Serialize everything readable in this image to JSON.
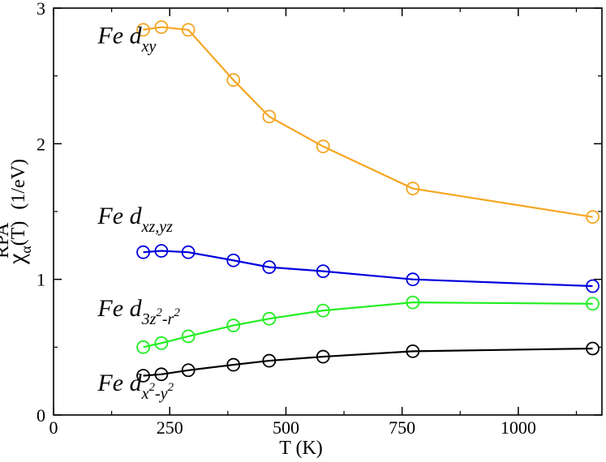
{
  "chart_data": {
    "type": "line",
    "title": "",
    "xlabel": "T (K)",
    "ylabel": {
      "symbol": "χ",
      "superscript": "RPA",
      "subscript": "α",
      "arg": "(T)",
      "unit": "(1/eV)"
    },
    "xlim": [
      0,
      1180
    ],
    "ylim": [
      0,
      3
    ],
    "x_ticks": [
      0,
      250,
      500,
      750,
      1000
    ],
    "x_tick_labels": [
      "0",
      "250",
      "500",
      "750",
      "1000"
    ],
    "y_ticks": [
      0,
      1,
      2,
      3
    ],
    "y_tick_labels": [
      "0",
      "1",
      "2",
      "3"
    ],
    "x": [
      193,
      232,
      290,
      387,
      464,
      580,
      773,
      1160
    ],
    "series": [
      {
        "name": "Fe d_xy",
        "label_main": "Fe d",
        "label_sub": "xy",
        "color": "#f5a623",
        "label_at": [
          95,
          2.74
        ],
        "values": [
          2.84,
          2.86,
          2.84,
          2.47,
          2.2,
          1.98,
          1.67,
          1.46
        ]
      },
      {
        "name": "Fe d_xz,yz",
        "label_main": "Fe d",
        "label_sub": "xz,yz",
        "color": "#0000dd",
        "label_at": [
          95,
          1.41
        ],
        "values": [
          1.2,
          1.21,
          1.2,
          1.14,
          1.09,
          1.06,
          1.0,
          0.95
        ]
      },
      {
        "name": "Fe d_3z^2-r^2",
        "label_main": "Fe d",
        "label_sub_parts": [
          "3z",
          "2",
          "-r",
          "2"
        ],
        "color": "#22ee22",
        "label_at": [
          95,
          0.73
        ],
        "values": [
          0.5,
          0.53,
          0.58,
          0.66,
          0.71,
          0.77,
          0.83,
          0.82
        ]
      },
      {
        "name": "Fe d_x^2-y^2",
        "label_main": "Fe d",
        "label_sub_parts": [
          "x",
          "2",
          "-y",
          "2"
        ],
        "color": "#000000",
        "label_at": [
          95,
          0.18
        ],
        "values": [
          0.29,
          0.3,
          0.33,
          0.37,
          0.4,
          0.43,
          0.47,
          0.49
        ]
      }
    ]
  }
}
